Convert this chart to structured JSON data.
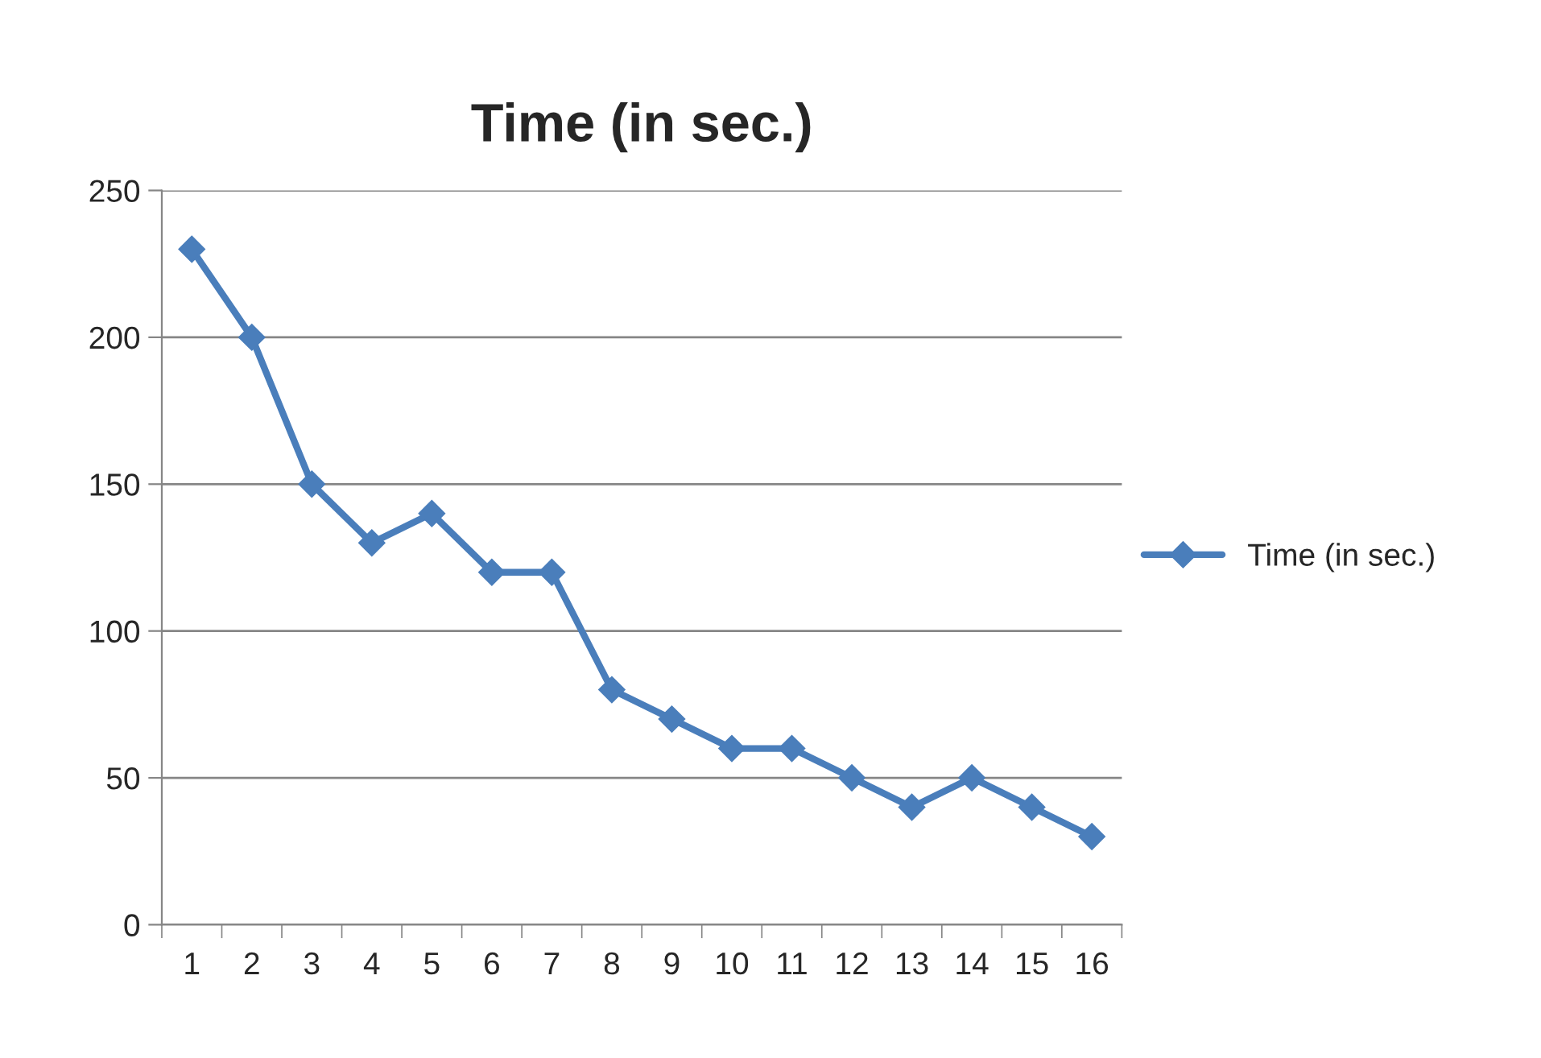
{
  "chart_data": {
    "type": "line",
    "title": "Time (in sec.)",
    "categories": [
      "1",
      "2",
      "3",
      "4",
      "5",
      "6",
      "7",
      "8",
      "9",
      "10",
      "11",
      "12",
      "13",
      "14",
      "15",
      "16"
    ],
    "series": [
      {
        "name": "Time (in sec.)",
        "color": "#4a7ebb",
        "values": [
          230,
          200,
          150,
          130,
          140,
          120,
          120,
          80,
          70,
          60,
          60,
          50,
          40,
          50,
          40,
          30
        ]
      }
    ],
    "ylim": [
      0,
      250
    ],
    "yticks": [
      0,
      50,
      100,
      150,
      200,
      250
    ],
    "grid": "y",
    "legend": "right",
    "marker": "diamond",
    "line_style": "solid"
  }
}
